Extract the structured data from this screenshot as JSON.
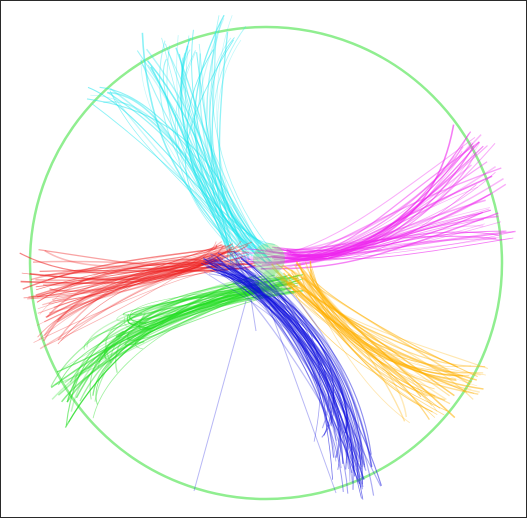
{
  "boundary": {
    "color": "#90ee90"
  },
  "bundles": [
    {
      "name": "cyan-bundle",
      "color": "#22e5ee",
      "density": 55
    },
    {
      "name": "magenta-bundle",
      "color": "#ee22ee",
      "density": 50
    },
    {
      "name": "red-bundle",
      "color": "#ee2020",
      "density": 50
    },
    {
      "name": "green-bundle",
      "color": "#22dd22",
      "density": 50
    },
    {
      "name": "orange-bundle",
      "color": "#ffb000",
      "density": 45
    },
    {
      "name": "blue-bundle",
      "color": "#1010dd",
      "density": 55
    }
  ],
  "hub": {
    "color": "#66dd66"
  }
}
